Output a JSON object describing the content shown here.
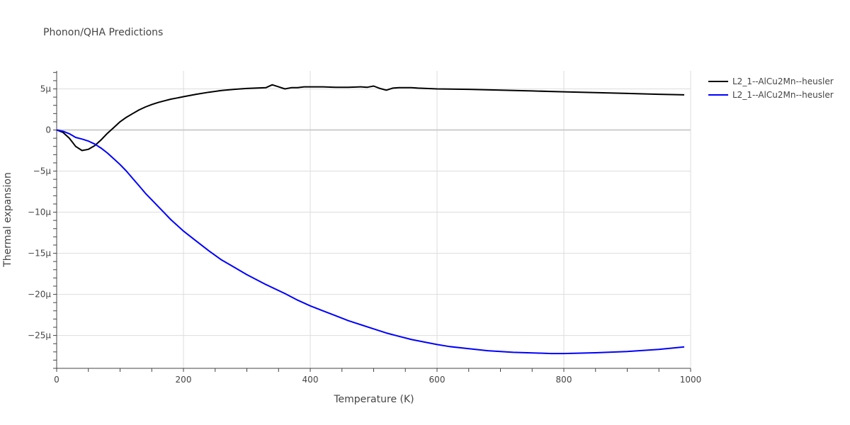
{
  "chart_data": {
    "type": "line",
    "title": "Phonon/QHA Predictions",
    "xlabel": "Temperature (K)",
    "ylabel": "Thermal expansion",
    "xlim": [
      0,
      1000
    ],
    "ylim": [
      -29,
      7.2
    ],
    "x_ticks": [
      0,
      200,
      400,
      600,
      800,
      1000
    ],
    "x_tick_labels": [
      "0",
      "200",
      "400",
      "600",
      "800",
      "1000"
    ],
    "y_ticks": [
      5,
      0,
      -5,
      -10,
      -15,
      -20,
      -25
    ],
    "y_tick_labels": [
      "5μ",
      "0",
      "−5μ",
      "−10μ",
      "−15μ",
      "−20μ",
      "−25μ"
    ],
    "grid": true,
    "legend_position": "top-right",
    "series": [
      {
        "name": "L2_1--AlCu2Mn--heusler",
        "color": "#000000",
        "x": [
          0,
          10,
          20,
          30,
          40,
          50,
          60,
          70,
          80,
          90,
          100,
          110,
          120,
          130,
          140,
          150,
          160,
          170,
          180,
          190,
          200,
          220,
          240,
          260,
          280,
          300,
          330,
          340,
          350,
          360,
          370,
          380,
          390,
          400,
          420,
          440,
          460,
          480,
          490,
          500,
          510,
          520,
          530,
          540,
          560,
          570,
          600,
          650,
          700,
          750,
          800,
          850,
          900,
          950,
          990
        ],
        "y": [
          0,
          -0.3,
          -1.0,
          -2.0,
          -2.5,
          -2.35,
          -1.9,
          -1.2,
          -0.4,
          0.3,
          1.0,
          1.55,
          2.0,
          2.45,
          2.8,
          3.1,
          3.35,
          3.55,
          3.75,
          3.9,
          4.05,
          4.35,
          4.6,
          4.8,
          4.95,
          5.05,
          5.15,
          5.5,
          5.25,
          5.0,
          5.15,
          5.15,
          5.25,
          5.25,
          5.25,
          5.2,
          5.2,
          5.25,
          5.2,
          5.35,
          5.05,
          4.85,
          5.1,
          5.15,
          5.15,
          5.1,
          5.0,
          4.95,
          4.85,
          4.75,
          4.65,
          4.55,
          4.45,
          4.35,
          4.28
        ]
      },
      {
        "name": "L2_1--AlCu2Mn--heusler",
        "color": "#0000ff",
        "x": [
          0,
          10,
          20,
          30,
          40,
          50,
          60,
          70,
          80,
          90,
          100,
          110,
          120,
          130,
          140,
          150,
          160,
          170,
          180,
          190,
          200,
          220,
          240,
          260,
          280,
          300,
          330,
          360,
          380,
          400,
          420,
          440,
          460,
          480,
          500,
          520,
          540,
          560,
          580,
          600,
          620,
          650,
          680,
          720,
          760,
          780,
          800,
          850,
          900,
          950,
          990
        ],
        "y": [
          0,
          -0.15,
          -0.45,
          -0.9,
          -1.1,
          -1.35,
          -1.7,
          -2.2,
          -2.8,
          -3.5,
          -4.2,
          -5.0,
          -5.9,
          -6.8,
          -7.7,
          -8.5,
          -9.3,
          -10.1,
          -10.9,
          -11.6,
          -12.3,
          -13.5,
          -14.7,
          -15.8,
          -16.7,
          -17.6,
          -18.8,
          -19.9,
          -20.7,
          -21.4,
          -22.0,
          -22.6,
          -23.2,
          -23.7,
          -24.2,
          -24.7,
          -25.1,
          -25.5,
          -25.8,
          -26.1,
          -26.35,
          -26.6,
          -26.85,
          -27.05,
          -27.15,
          -27.2,
          -27.2,
          -27.1,
          -26.95,
          -26.7,
          -26.4
        ]
      }
    ]
  }
}
